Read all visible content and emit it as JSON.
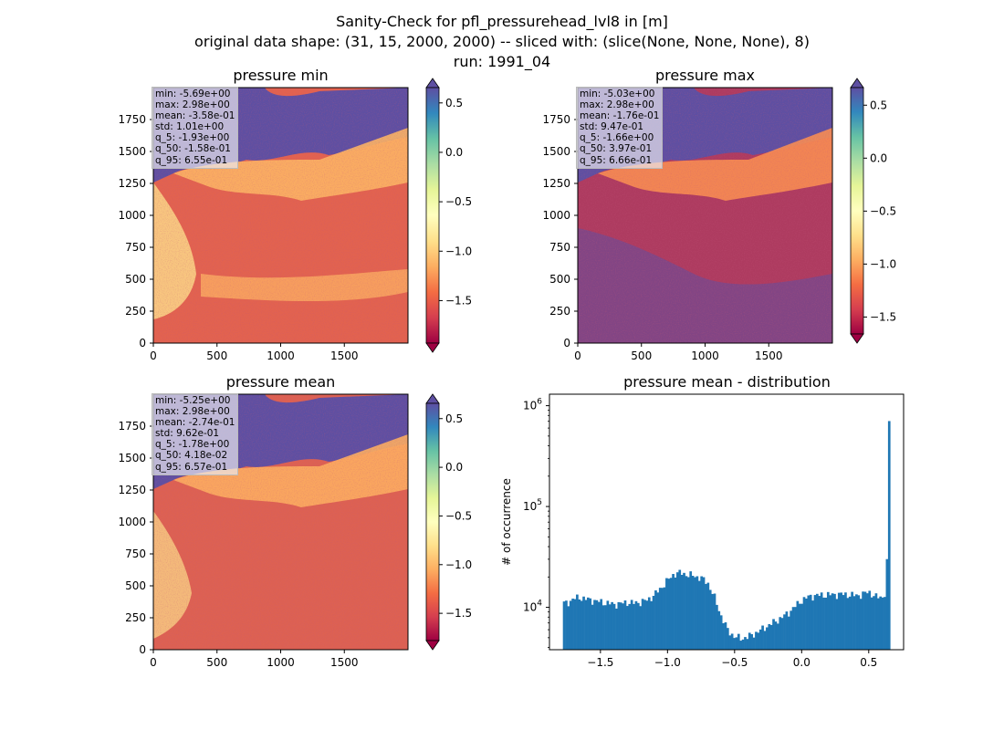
{
  "suptitle": {
    "line1": "Sanity-Check for pfl_pressurehead_lvl8 in [m]",
    "line2": "original data shape: (31, 15, 2000, 2000) -- sliced with: (slice(None, None, None), 8)",
    "line3": "run: 1991_04"
  },
  "panels": [
    {
      "title": "pressure min",
      "stats": [
        "min: -5.69e+00",
        "max: 2.98e+00",
        "mean: -3.58e-01",
        "std: 1.01e+00",
        "q_5: -1.93e+00",
        "q_50: -1.58e-01",
        "q_95: 6.55e-01"
      ]
    },
    {
      "title": "pressure max",
      "stats": [
        "min: -5.03e+00",
        "max: 2.98e+00",
        "mean: -1.76e-01",
        "std: 9.47e-01",
        "q_5: -1.66e+00",
        "q_50: 3.97e-01",
        "q_95: 6.66e-01"
      ]
    },
    {
      "title": "pressure mean",
      "stats": [
        "min: -5.25e+00",
        "max: 2.98e+00",
        "mean: -2.74e-01",
        "std: 9.62e-01",
        "q_5: -1.78e+00",
        "q_50: 4.18e-02",
        "q_95: 6.57e-01"
      ]
    }
  ],
  "map_axes": {
    "xticks": [
      "0",
      "500",
      "1000",
      "1500"
    ],
    "yticks": [
      "0",
      "250",
      "500",
      "750",
      "1000",
      "1250",
      "1500",
      "1750"
    ],
    "extent": [
      0,
      2000
    ]
  },
  "colorbars": [
    {
      "vmin": -1.93,
      "vmax": 0.655,
      "ticks": [
        -1.5,
        -1.0,
        -0.5,
        0.0,
        0.5
      ],
      "labels": [
        "−1.5",
        "−1.0",
        "−0.5",
        "0.0",
        "0.5"
      ]
    },
    {
      "vmin": -1.66,
      "vmax": 0.666,
      "ticks": [
        -1.5,
        -1.0,
        -0.5,
        0.0,
        0.5
      ],
      "labels": [
        "−1.5",
        "−1.0",
        "−0.5",
        "0.0",
        "0.5"
      ]
    },
    {
      "vmin": -1.78,
      "vmax": 0.657,
      "ticks": [
        -1.5,
        -1.0,
        -0.5,
        0.0,
        0.5
      ],
      "labels": [
        "−1.5",
        "−1.0",
        "−0.5",
        "0.0",
        "0.5"
      ]
    }
  ],
  "colormap": "Spectral",
  "chart_data": {
    "type": "bar",
    "title": "pressure mean - distribution",
    "xlabel": "",
    "ylabel": "# of occurrence",
    "yscale": "log",
    "xlim": [
      -1.88,
      0.76
    ],
    "ylim": [
      3800,
      1300000
    ],
    "xticks": [
      -1.5,
      -1.0,
      -0.5,
      0.0,
      0.5
    ],
    "xtick_labels": [
      "−1.5",
      "−1.0",
      "−0.5",
      "0.0",
      "0.5"
    ],
    "ytick_labels": [
      "10^4",
      "10^5",
      "10^6"
    ],
    "color": "#1f77b4",
    "bin_edges_range": [
      -1.78,
      0.66
    ],
    "x": [
      -1.75,
      -1.7,
      -1.65,
      -1.6,
      -1.55,
      -1.5,
      -1.45,
      -1.4,
      -1.35,
      -1.3,
      -1.25,
      -1.2,
      -1.15,
      -1.1,
      -1.05,
      -1.0,
      -0.95,
      -0.9,
      -0.85,
      -0.8,
      -0.75,
      -0.7,
      -0.65,
      -0.6,
      -0.55,
      -0.5,
      -0.45,
      -0.4,
      -0.35,
      -0.3,
      -0.25,
      -0.2,
      -0.15,
      -0.1,
      -0.05,
      0.0,
      0.05,
      0.1,
      0.15,
      0.2,
      0.25,
      0.3,
      0.35,
      0.4,
      0.45,
      0.5,
      0.55,
      0.6,
      0.625,
      0.64,
      0.65,
      0.66
    ],
    "y": [
      11000,
      12200,
      12500,
      12000,
      11700,
      11300,
      11000,
      10700,
      10900,
      11200,
      11000,
      11300,
      11800,
      13200,
      15500,
      18500,
      21500,
      22000,
      21000,
      20500,
      19500,
      17500,
      12500,
      8200,
      5900,
      5100,
      4900,
      5100,
      5500,
      6000,
      6600,
      7200,
      7900,
      8800,
      10200,
      11700,
      12700,
      13100,
      13200,
      13300,
      13400,
      13500,
      13300,
      13100,
      13400,
      14300,
      12700,
      12600,
      14000,
      37000,
      950000,
      170000
    ]
  }
}
